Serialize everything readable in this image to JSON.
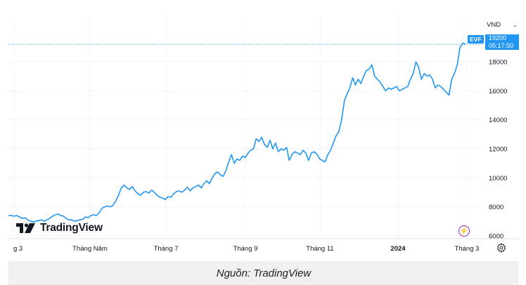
{
  "chart": {
    "currency": "VND",
    "symbol": "EVF",
    "last_price": "19200",
    "countdown": "05:17:50",
    "brand": "TradingView",
    "line_color": "#2196f3",
    "marker_color": "#9c27b0"
  },
  "caption": "Nguồn: TradingView",
  "chart_data": {
    "type": "line",
    "ylim": [
      5800,
      21200
    ],
    "y_ticks": [
      6000,
      8000,
      10000,
      12000,
      14000,
      16000,
      18000
    ],
    "x_tick_labels": [
      "g 3",
      "Tháng Năm",
      "Tháng 7",
      "Tháng 9",
      "Tháng 11",
      "2024",
      "Tháng 3"
    ],
    "grid": true,
    "series": [
      {
        "values": [
          7400,
          7400,
          7350,
          7400,
          7300,
          7200,
          7250,
          7100,
          7000,
          6950,
          7000,
          7050,
          7100,
          7000,
          7100,
          7200,
          7350,
          7450,
          7500,
          7400,
          7350,
          7200,
          7100,
          7100,
          7000,
          7050,
          7100,
          7150,
          7300,
          7250,
          7400,
          7450,
          7400,
          7600,
          7900,
          8000,
          8050,
          8000,
          8100,
          8400,
          8800,
          9300,
          9500,
          9300,
          9200,
          9400,
          9100,
          8900,
          8800,
          9000,
          9050,
          8950,
          9150,
          9000,
          8800,
          8650,
          8600,
          8500,
          8700,
          8650,
          8900,
          9050,
          9100,
          9000,
          9150,
          9350,
          9100,
          9300,
          9400,
          9500,
          9300,
          9600,
          9800,
          9600,
          10000,
          10300,
          10400,
          10200,
          10100,
          10500,
          11100,
          11600,
          11000,
          11300,
          11200,
          11500,
          11400,
          11700,
          11900,
          12000,
          12700,
          12500,
          12800,
          12300,
          12100,
          12600,
          12000,
          12400,
          11800,
          12000,
          11900,
          12100,
          11200,
          11600,
          11800,
          11700,
          11600,
          11900,
          11700,
          11200,
          11700,
          11800,
          11650,
          11300,
          11200,
          11100,
          11600,
          11900,
          12400,
          12900,
          13200,
          14000,
          15300,
          15800,
          16200,
          16900,
          16400,
          16800,
          16500,
          17000,
          17400,
          17500,
          17800,
          17000,
          16800,
          16600,
          16300,
          16000,
          16200,
          16100,
          16200,
          16300,
          16000,
          16100,
          16200,
          16300,
          16800,
          17200,
          18000,
          17600,
          16800,
          17200,
          17000,
          17100,
          16800,
          16200,
          16400,
          16300,
          16100,
          15900,
          15700,
          16800,
          17200,
          17800,
          19000,
          19300,
          19200
        ]
      }
    ]
  }
}
